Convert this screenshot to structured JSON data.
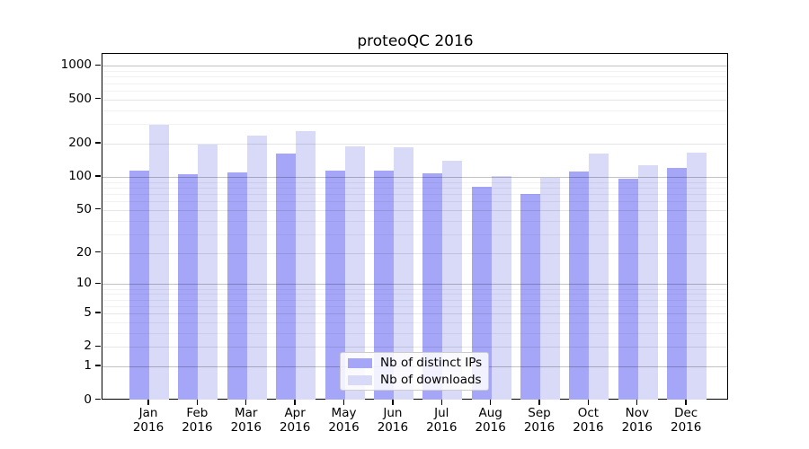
{
  "chart_data": {
    "type": "bar",
    "title": "proteoQC 2016",
    "categories": [
      {
        "month": "Jan",
        "year": "2016"
      },
      {
        "month": "Feb",
        "year": "2016"
      },
      {
        "month": "Mar",
        "year": "2016"
      },
      {
        "month": "Apr",
        "year": "2016"
      },
      {
        "month": "May",
        "year": "2016"
      },
      {
        "month": "Jun",
        "year": "2016"
      },
      {
        "month": "Jul",
        "year": "2016"
      },
      {
        "month": "Aug",
        "year": "2016"
      },
      {
        "month": "Sep",
        "year": "2016"
      },
      {
        "month": "Oct",
        "year": "2016"
      },
      {
        "month": "Nov",
        "year": "2016"
      },
      {
        "month": "Dec",
        "year": "2016"
      }
    ],
    "series": [
      {
        "name": "Nb of distinct IPs",
        "color": "#a6a6f8",
        "values": [
          114,
          105,
          109,
          164,
          115,
          114,
          107,
          81,
          70,
          111,
          97,
          121
        ]
      },
      {
        "name": "Nb of downloads",
        "color": "#d9d9f8",
        "values": [
          297,
          196,
          236,
          258,
          188,
          186,
          141,
          101,
          98,
          162,
          128,
          166
        ]
      }
    ],
    "yaxis": {
      "scale": "log10(value+1)",
      "tick_values": [
        0,
        1,
        2,
        5,
        10,
        20,
        50,
        100,
        200,
        500,
        1000
      ],
      "tick_labels": [
        "0",
        "1",
        "2",
        "5",
        "10",
        "20",
        "50",
        "100",
        "200",
        "500",
        "1000"
      ],
      "minor_tick_values": [
        3,
        4,
        6,
        7,
        8,
        9,
        30,
        40,
        60,
        70,
        80,
        90,
        300,
        400,
        600,
        700,
        800,
        900
      ],
      "range": [
        0,
        1000
      ],
      "grid": true
    },
    "legend": {
      "position": "inside-bottom-center",
      "entries": [
        "Nb of distinct IPs",
        "Nb of downloads"
      ]
    }
  }
}
